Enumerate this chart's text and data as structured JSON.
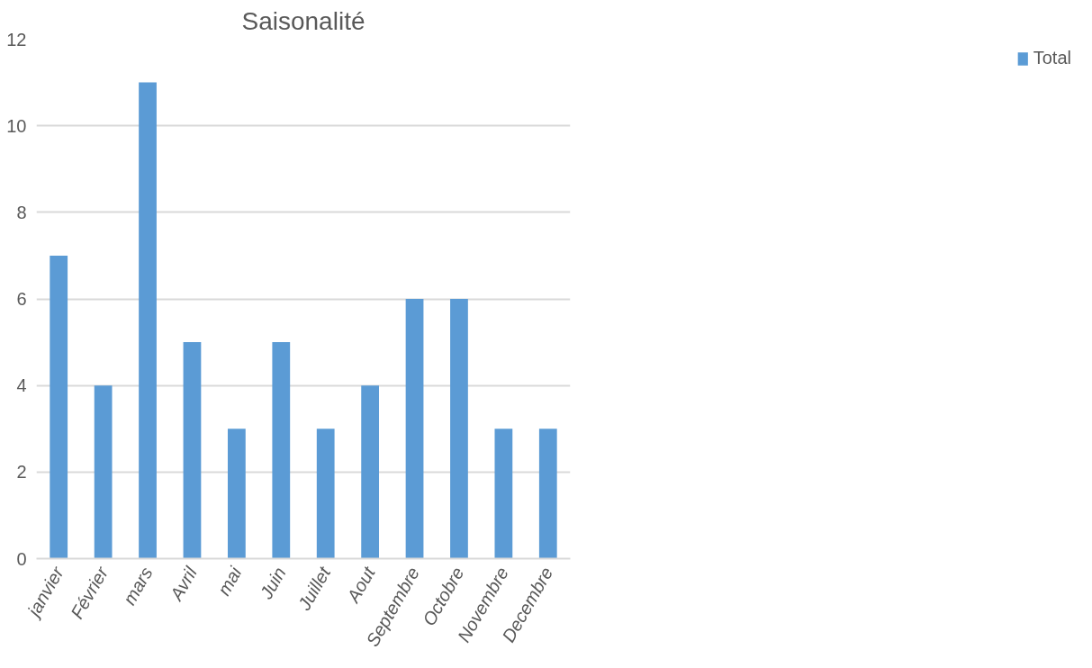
{
  "chart_data": {
    "type": "bar",
    "title": "Saisonalité",
    "categories": [
      "janvier",
      "Février",
      "mars",
      "Avril",
      "mai",
      "Juin",
      "Juillet",
      "Aout",
      "Septembre",
      "Octobre",
      "Novembre",
      "Decembre"
    ],
    "series": [
      {
        "name": "Total",
        "color": "#5b9bd5",
        "values": [
          7,
          4,
          11,
          5,
          3,
          5,
          3,
          4,
          6,
          6,
          3,
          3
        ]
      }
    ],
    "ylim": [
      0,
      12
    ],
    "yticks": [
      0,
      2,
      4,
      6,
      8,
      10,
      12
    ],
    "grid": "y",
    "legend": "right"
  }
}
